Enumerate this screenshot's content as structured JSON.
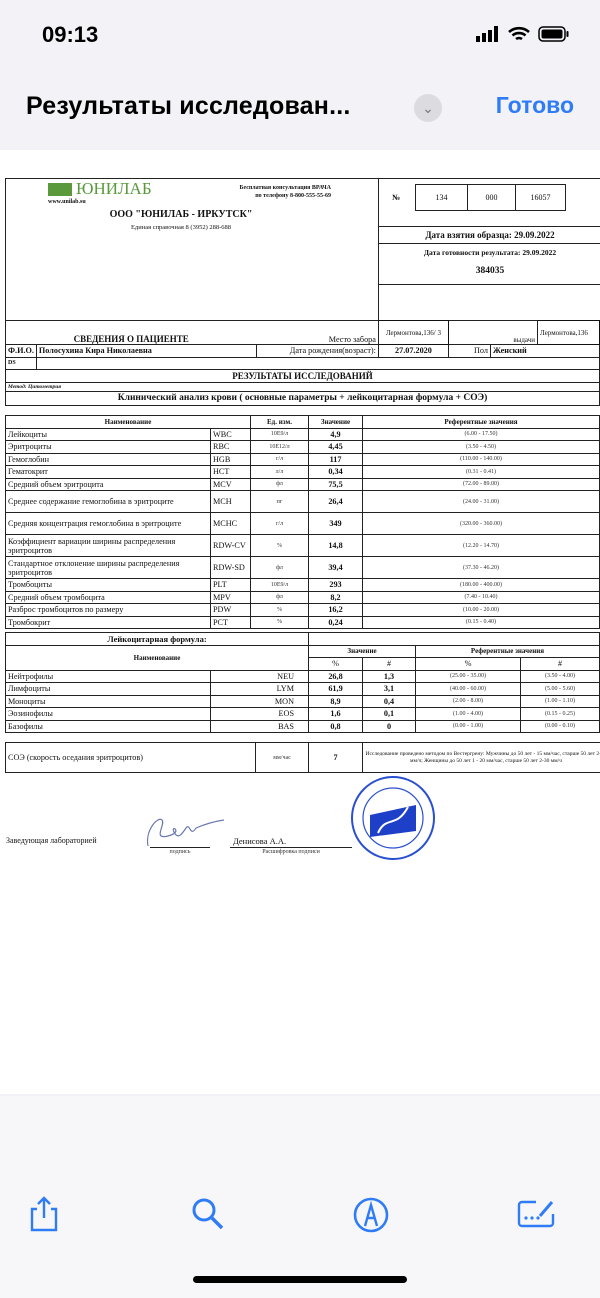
{
  "status": {
    "time": "09:13"
  },
  "nav": {
    "title": "Результаты исследован...",
    "done": "Готово"
  },
  "doc": {
    "logo": "ЮНИЛАБ",
    "site": "www.unilab.su",
    "consult1": "Бесплатная консультация ВРАЧА",
    "consult2": "по телефону 8-800-555-55-69",
    "org": "ООО \"ЮНИЛАБ - ИРКУТСК\"",
    "phone": "Единая справочная 8 (3952) 288-688",
    "num_label": "№",
    "num": [
      "134",
      "000",
      "16057"
    ],
    "sample_date": "Дата взятия образца: 29.09.2022",
    "ready_date": "Дата готовности результата: 29.09.2022",
    "code": "384035",
    "patient_header": "СВЕДЕНИЯ О ПАЦИЕНТЕ",
    "place_label": "Место забора",
    "place": "Лермонтова,136/ 3",
    "issue_label": "выдачи",
    "issue": "Лермонтова,136",
    "fio_label": "Ф.И.О.",
    "fio": "Полосухина Кира Николаевна",
    "dob_label": "Дата рождения(возраст):",
    "dob": "27.07.2020",
    "sex_label": "Пол",
    "sex": "Женский",
    "ds_label": "DS",
    "results_title": "РЕЗУЛЬТАТЫ ИССЛЕДОВАНИЙ",
    "method": "Метод: Цитометрия",
    "analysis_title": "Клинический анализ крови ( основные параметры + лейкоцитарная формула  + СОЭ)",
    "headers": [
      "Наименование",
      "Ед. изм.",
      "Значение",
      "Референтные значения"
    ],
    "rows": [
      [
        "Лейкоциты",
        "WBC",
        "10E9/л",
        "4,9",
        "(6.00 - 17.50)"
      ],
      [
        "Эритроциты",
        "RBC",
        "10E12/л",
        "4,45",
        "(3.50 - 4.50)"
      ],
      [
        "Гемоглобин",
        "HGB",
        "г/л",
        "117",
        "(110.00 - 140.00)"
      ],
      [
        "Гематокрит",
        "HCT",
        "л/л",
        "0,34",
        "(0.31 - 0.41)"
      ],
      [
        "Средний объем эритроцита",
        "MCV",
        "фл",
        "75,5",
        "(72.00 - 89.00)"
      ],
      [
        "Среднее содержание гемоглобина в эритроците",
        "MCH",
        "пг",
        "26,4",
        "(24.00 - 31.00)"
      ],
      [
        "Средняя концентрация гемоглобина в эритроците",
        "MCHC",
        "г/л",
        "349",
        "(320.00 - 360.00)"
      ],
      [
        "Коэффициент вариации ширины распределения эритроцитов",
        "RDW-CV",
        "%",
        "14,8",
        "(12.20 - 14.70)"
      ],
      [
        "Стандартное отклонение ширины распределения эритроцитов",
        "RDW-SD",
        "фл",
        "39,4",
        "(37.30 - 46.20)"
      ],
      [
        "Тромбоциты",
        "PLT",
        "10E9/л",
        "293",
        "(180.00 - 400.00)"
      ],
      [
        "Средний объем тромбоцита",
        "MPV",
        "фл",
        "8,2",
        "(7.40 - 10.40)"
      ],
      [
        "Разброс тромбоцитов по размеру",
        "PDW",
        "%",
        "16,2",
        "(10.00 - 20.00)"
      ],
      [
        "Тромбокрит",
        "PCT",
        "%",
        "0,24",
        "(0.15 - 0.40)"
      ]
    ],
    "leuko_title": "Лейкоцитарная формула:",
    "leuko_headers": {
      "name": "Наименование",
      "value": "Значение",
      "ref": "Референтные значения",
      "pct": "%",
      "abs": "#"
    },
    "leuko_rows": [
      [
        "Нейтрофилы",
        "NEU",
        "26,8",
        "1,3",
        "(25.00 - 35.00)",
        "(3.50 - 4.00)"
      ],
      [
        "Лимфоциты",
        "LYM",
        "61,9",
        "3,1",
        "(40.00 - 60.00)",
        "(5.00 - 5.60)"
      ],
      [
        "Моноциты",
        "MON",
        "8,9",
        "0,4",
        "(2.00 - 8.00)",
        "(1.00 - 1.10)"
      ],
      [
        "Эозинофилы",
        "EOS",
        "1,6",
        "0,1",
        "(1.00 - 4.00)",
        "(0.15 - 0.25)"
      ],
      [
        "Базофилы",
        "BAS",
        "0,8",
        "0",
        "(0.00 - 1.00)",
        "(0.00 - 0.10)"
      ]
    ],
    "esr": {
      "name": "СОЭ (скорость оседания эритроцитов)",
      "unit": "мм/час",
      "value": "7",
      "note": "Исследование проведено методом по Вестергрену: Мужчины до 50 лет - 15 мм/час, старше 50 лет 2-20 мм/ч; Женщины до 50 лет  1 - 20 мм/час, старше 50 лет 2-30 мм/ч"
    },
    "head_lab": "Заведующая лабораторией",
    "sign_caption": "подпись",
    "signer": "Денисова А.А.",
    "signer_caption": "Расшифровка подписи",
    "stamp": "ЮНИЛАБ-Иркутск"
  },
  "colors": {
    "accent": "#2f7cf6",
    "logo": "#5a9a3c",
    "stamp": "#2a4fd0"
  },
  "toolbar": {
    "icons": [
      "share-icon",
      "search-icon",
      "markup-icon",
      "annotate-icon"
    ]
  }
}
